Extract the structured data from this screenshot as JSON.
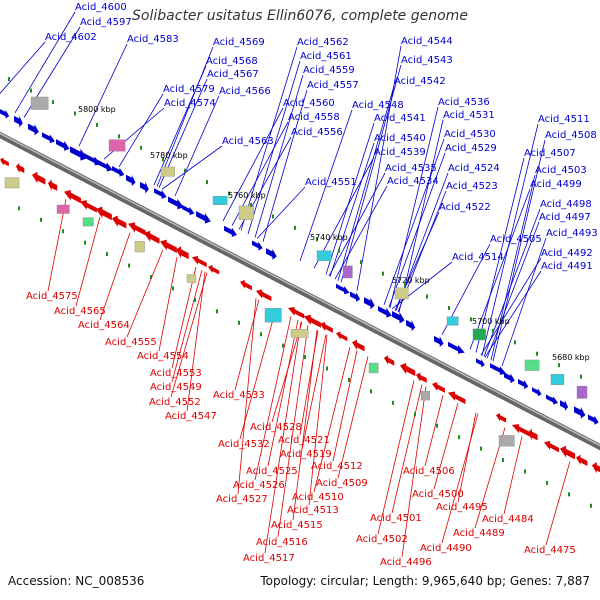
{
  "title": "Solibacter usitatus Ellin6076, complete genome",
  "footer": {
    "accession": "Accession: NC_008536",
    "stats": "Topology: circular; Length: 9,965,640 bp; Genes: 7,887"
  },
  "colors": {
    "forward": "#0000cc",
    "reverse": "#dd0000",
    "backbone": "#888888",
    "misc": "#228822"
  },
  "ticks": [
    "5800 kbp",
    "5780 kbp",
    "5760 kbp",
    "5740 kbp",
    "5720 kbp",
    "5700 kbp",
    "5680 kbp"
  ],
  "forward_labels": [
    "Acid_4600",
    "Acid_4597",
    "Acid_4602",
    "Acid_4583",
    "Acid_4579",
    "Acid_4574",
    "Acid_4569",
    "Acid_4568",
    "Acid_4567",
    "Acid_4566",
    "Acid_4563",
    "Acid_4562",
    "Acid_4561",
    "Acid_4559",
    "Acid_4557",
    "Acid_4560",
    "Acid_4558",
    "Acid_4556",
    "Acid_4551",
    "Acid_4544",
    "Acid_4543",
    "Acid_4542",
    "Acid_4548",
    "Acid_4541",
    "Acid_4540",
    "Acid_4539",
    "Acid_4535",
    "Acid_4534",
    "Acid_4536",
    "Acid_4531",
    "Acid_4530",
    "Acid_4529",
    "Acid_4524",
    "Acid_4523",
    "Acid_4522",
    "Acid_4514",
    "Acid_4511",
    "Acid_4508",
    "Acid_4507",
    "Acid_4503",
    "Acid_4499",
    "Acid_4498",
    "Acid_4497",
    "Acid_4505",
    "Acid_4493",
    "Acid_4492",
    "Acid_4491"
  ],
  "reverse_labels": [
    "Acid_4575",
    "Acid_4565",
    "Acid_4564",
    "Acid_4555",
    "Acid_4554",
    "Acid_4553",
    "Acid_4549",
    "Acid_4552",
    "Acid_4547",
    "Acid_4533",
    "Acid_4528",
    "Acid_4532",
    "Acid_4521",
    "Acid_4519",
    "Acid_4525",
    "Acid_4526",
    "Acid_4527",
    "Acid_4512",
    "Acid_4509",
    "Acid_4510",
    "Acid_4513",
    "Acid_4515",
    "Acid_4516",
    "Acid_4517",
    "Acid_4506",
    "Acid_4500",
    "Acid_4501",
    "Acid_4502",
    "Acid_4495",
    "Acid_4496",
    "Acid_4489",
    "Acid_4490",
    "Acid_4484",
    "Acid_4475"
  ]
}
